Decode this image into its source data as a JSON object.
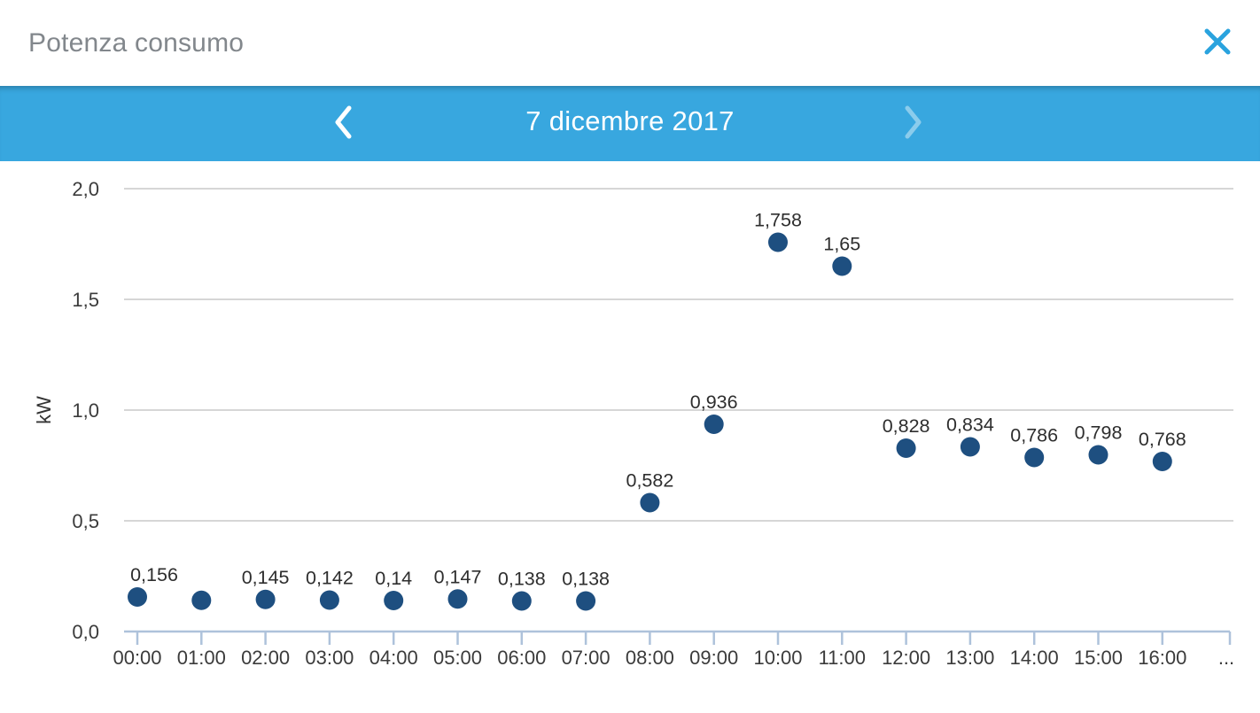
{
  "header": {
    "title": "Potenza consumo",
    "close_icon": "close-icon"
  },
  "date_nav": {
    "prev_icon": "chevron-left-icon",
    "next_icon": "chevron-right-icon",
    "date_label": "7 dicembre 2017",
    "next_disabled": true
  },
  "colors": {
    "bar_blue": "#38a7df",
    "close_blue": "#2aa3de",
    "point_fill": "#1e4f80",
    "grid_line": "#d6d6d6",
    "axis_line": "#aec2db",
    "axis_text": "#3b3b3b",
    "value_text": "#2e2e2e",
    "title_gray": "#82878c"
  },
  "chart_data": {
    "type": "scatter",
    "title": "",
    "xlabel": "",
    "ylabel": "kW",
    "ylim": [
      0,
      2.0
    ],
    "yticks": [
      0,
      0.5,
      1.0,
      1.5,
      2.0
    ],
    "ytick_labels": [
      "0,0",
      "0,5",
      "1,0",
      "1,5",
      "2,0"
    ],
    "grid": true,
    "legend": "none",
    "overflow_label": "...",
    "points": [
      {
        "time": "00:00",
        "value": 0.156,
        "label": "0,156"
      },
      {
        "time": "01:00",
        "value": 0.141,
        "label": ""
      },
      {
        "time": "02:00",
        "value": 0.145,
        "label": "0,145"
      },
      {
        "time": "03:00",
        "value": 0.142,
        "label": "0,142"
      },
      {
        "time": "04:00",
        "value": 0.14,
        "label": "0,14"
      },
      {
        "time": "05:00",
        "value": 0.147,
        "label": "0,147"
      },
      {
        "time": "06:00",
        "value": 0.138,
        "label": "0,138"
      },
      {
        "time": "07:00",
        "value": 0.138,
        "label": "0,138"
      },
      {
        "time": "08:00",
        "value": 0.582,
        "label": "0,582"
      },
      {
        "time": "09:00",
        "value": 0.936,
        "label": "0,936"
      },
      {
        "time": "10:00",
        "value": 1.758,
        "label": "1,758"
      },
      {
        "time": "11:00",
        "value": 1.65,
        "label": "1,65"
      },
      {
        "time": "12:00",
        "value": 0.828,
        "label": "0,828"
      },
      {
        "time": "13:00",
        "value": 0.834,
        "label": "0,834"
      },
      {
        "time": "14:00",
        "value": 0.786,
        "label": "0,786"
      },
      {
        "time": "15:00",
        "value": 0.798,
        "label": "0,798"
      },
      {
        "time": "16:00",
        "value": 0.768,
        "label": "0,768"
      }
    ]
  }
}
